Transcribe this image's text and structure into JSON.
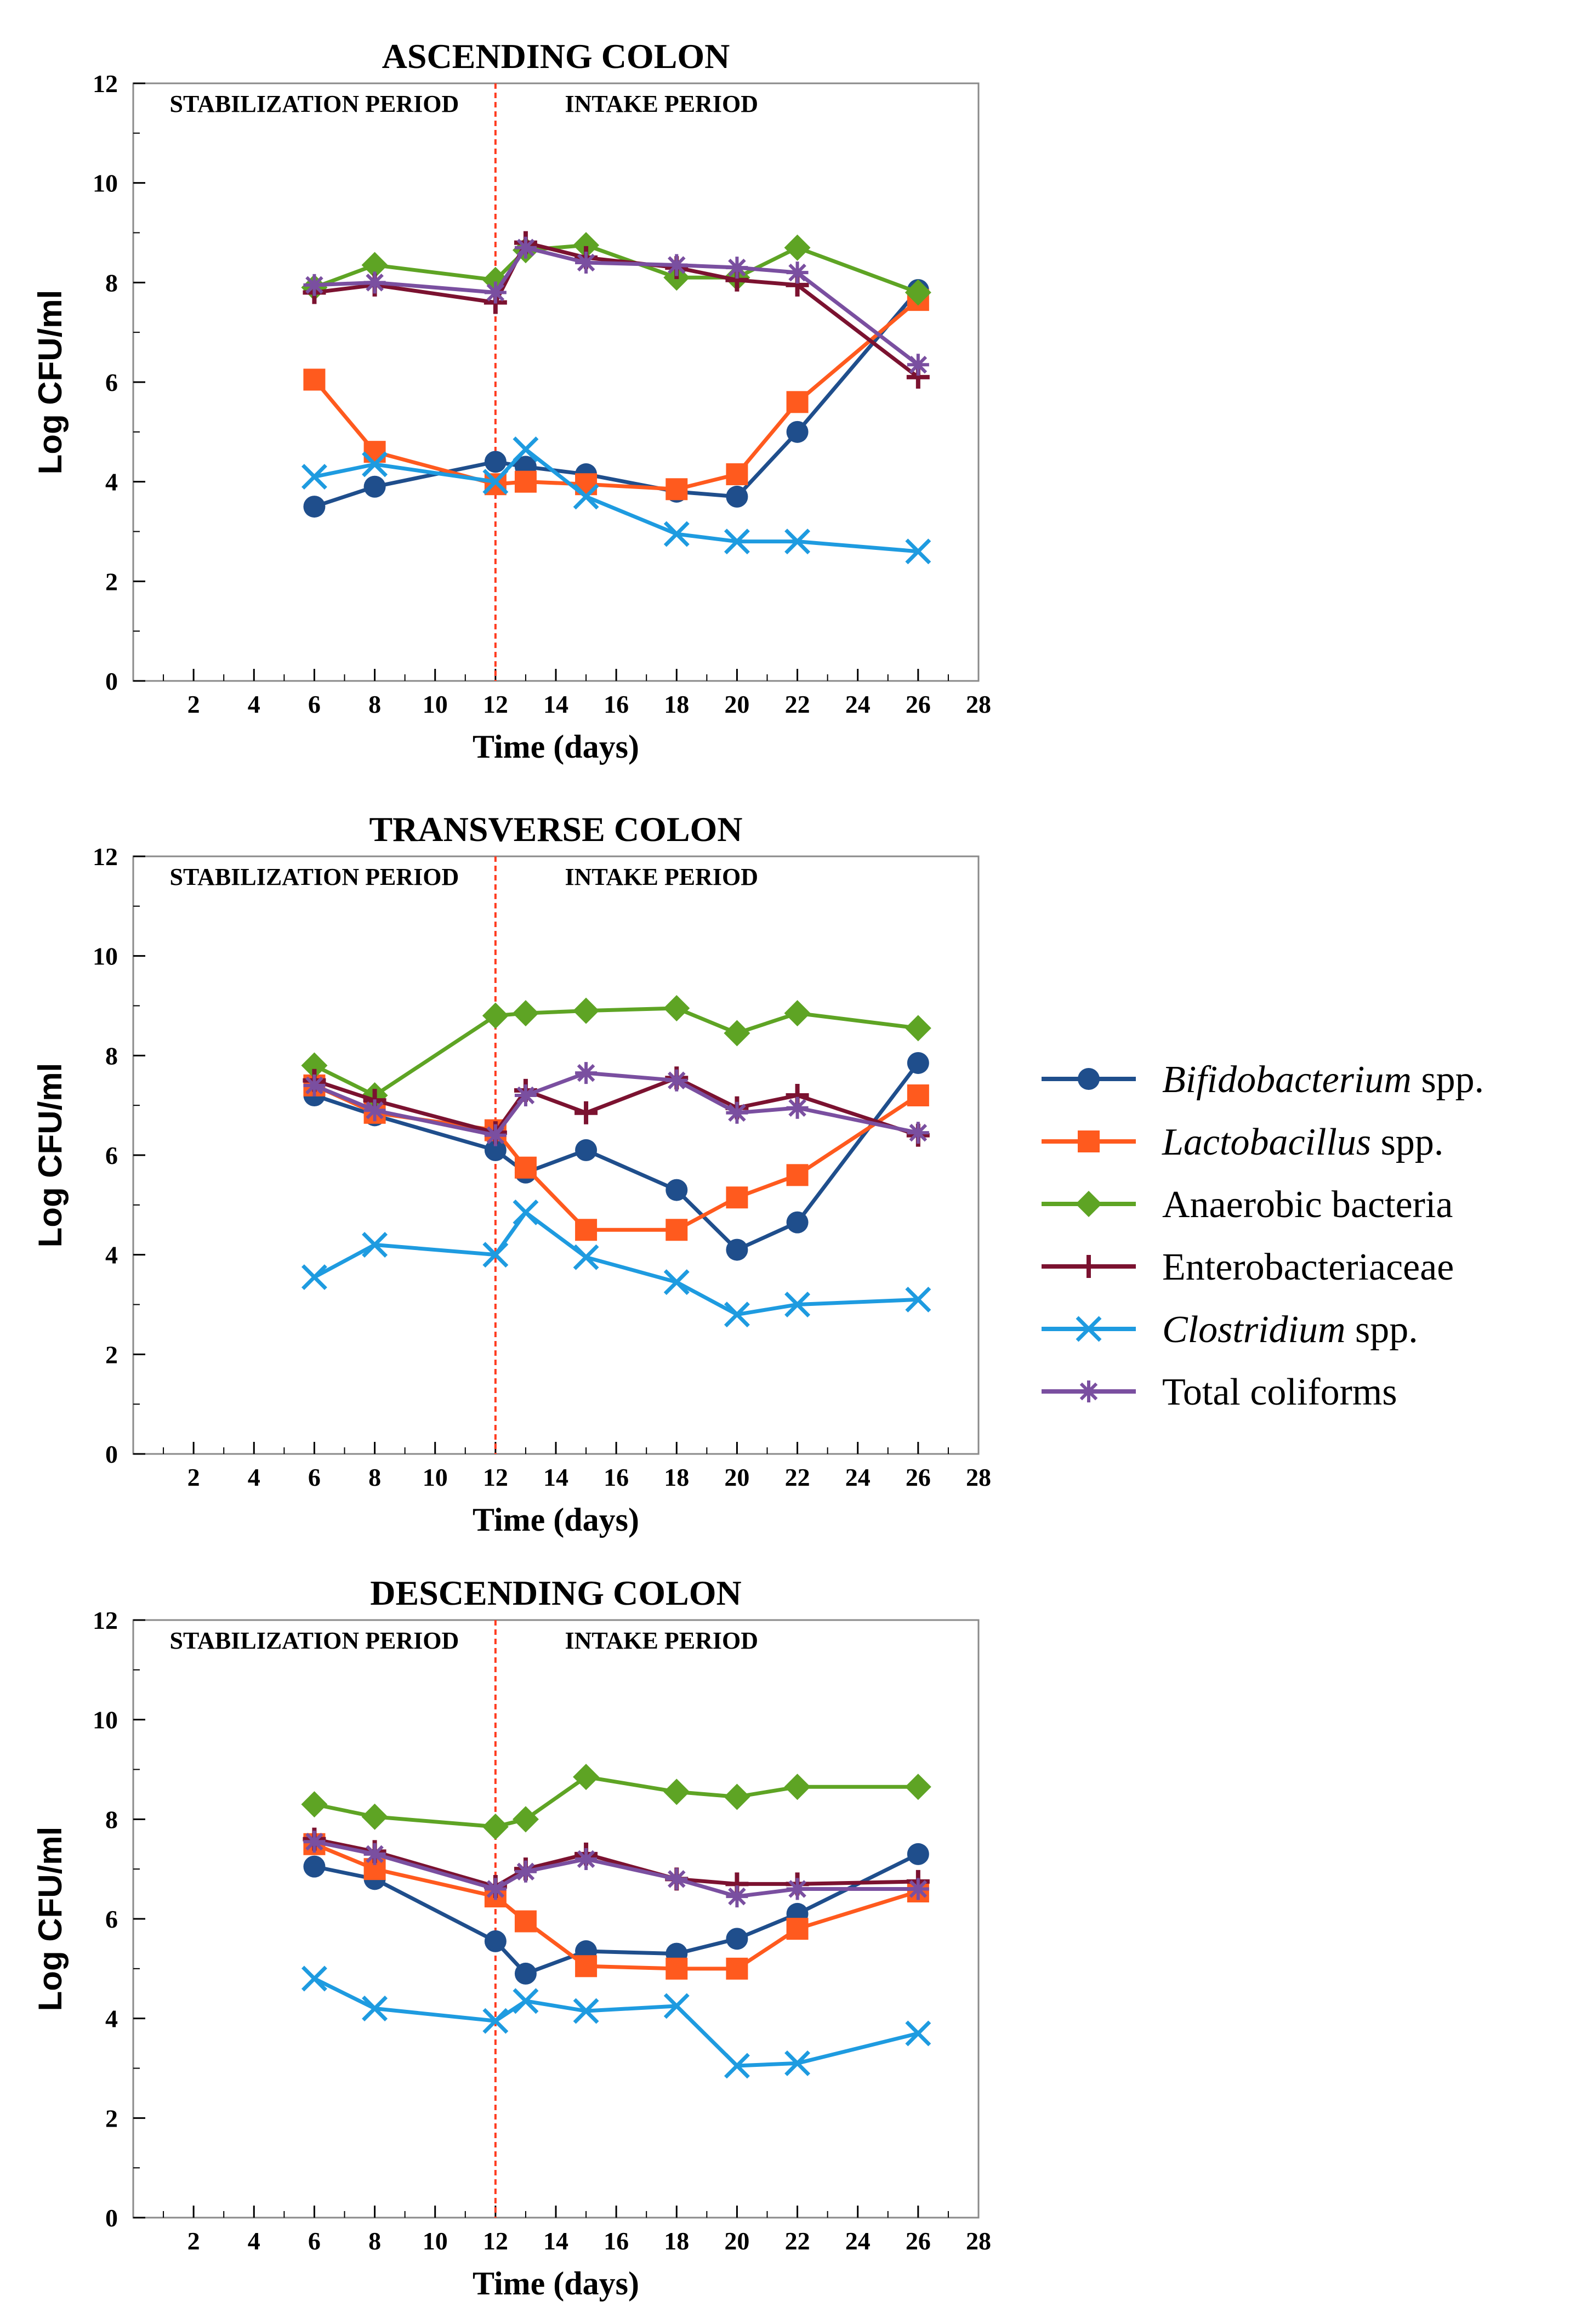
{
  "chart_data": [
    {
      "type": "line",
      "title": "ASCENDING COLON",
      "xlabel": "Time (days)",
      "ylabel": "Log CFU/ml",
      "xlim": [
        0,
        28
      ],
      "ylim": [
        0,
        12
      ],
      "xticks": [
        2,
        4,
        6,
        8,
        10,
        12,
        14,
        16,
        18,
        20,
        22,
        24,
        26,
        28
      ],
      "yticks": [
        0,
        2,
        4,
        6,
        8,
        10,
        12
      ],
      "divider_x": 12,
      "regions": [
        "STABILIZATION PERIOD",
        "INTAKE PERIOD"
      ],
      "x": [
        6,
        8,
        12,
        13,
        15,
        18,
        20,
        22,
        26
      ],
      "series": [
        {
          "name": "Bifidobacterium spp.",
          "values": [
            3.5,
            3.9,
            4.4,
            4.3,
            4.15,
            3.8,
            3.7,
            5.0,
            7.85
          ]
        },
        {
          "name": "Lactobacillus spp.",
          "values": [
            6.05,
            4.6,
            3.95,
            4.0,
            3.95,
            3.85,
            4.15,
            5.6,
            7.65
          ]
        },
        {
          "name": "Anaerobic bacteria",
          "values": [
            7.9,
            8.35,
            8.05,
            8.65,
            8.75,
            8.1,
            8.1,
            8.7,
            7.8
          ]
        },
        {
          "name": "Enterobacteriaceae",
          "values": [
            7.8,
            7.95,
            7.6,
            8.8,
            8.5,
            8.3,
            8.05,
            7.95,
            6.1
          ]
        },
        {
          "name": "Clostridium spp.",
          "values": [
            4.1,
            4.35,
            4.0,
            4.65,
            3.7,
            2.95,
            2.8,
            2.8,
            2.6
          ]
        },
        {
          "name": "Total coliforms",
          "values": [
            7.95,
            8.0,
            7.8,
            8.7,
            8.4,
            8.35,
            8.3,
            8.2,
            6.35
          ]
        }
      ]
    },
    {
      "type": "line",
      "title": "TRANSVERSE COLON",
      "xlabel": "Time (days)",
      "ylabel": "Log CFU/ml",
      "xlim": [
        0,
        28
      ],
      "ylim": [
        0,
        12
      ],
      "xticks": [
        2,
        4,
        6,
        8,
        10,
        12,
        14,
        16,
        18,
        20,
        22,
        24,
        26,
        28
      ],
      "yticks": [
        0,
        2,
        4,
        6,
        8,
        10,
        12
      ],
      "divider_x": 12,
      "regions": [
        "STABILIZATION PERIOD",
        "INTAKE PERIOD"
      ],
      "x": [
        6,
        8,
        12,
        13,
        15,
        18,
        20,
        22,
        26
      ],
      "series": [
        {
          "name": "Bifidobacterium spp.",
          "values": [
            7.2,
            6.8,
            6.1,
            5.65,
            6.1,
            5.3,
            4.1,
            4.65,
            7.85
          ]
        },
        {
          "name": "Lactobacillus spp.",
          "values": [
            7.4,
            6.85,
            6.5,
            5.75,
            4.5,
            4.5,
            5.15,
            5.6,
            7.2
          ]
        },
        {
          "name": "Anaerobic bacteria",
          "values": [
            7.8,
            7.2,
            8.8,
            8.85,
            8.9,
            8.95,
            8.45,
            8.85,
            8.55
          ]
        },
        {
          "name": "Enterobacteriaceae",
          "values": [
            7.5,
            7.1,
            6.45,
            7.3,
            6.85,
            7.55,
            6.95,
            7.2,
            6.4
          ]
        },
        {
          "name": "Clostridium spp.",
          "values": [
            3.55,
            4.2,
            4.0,
            4.85,
            3.95,
            3.45,
            2.8,
            3.0,
            3.1
          ]
        },
        {
          "name": "Total coliforms",
          "values": [
            7.4,
            6.9,
            6.4,
            7.2,
            7.65,
            7.5,
            6.85,
            6.95,
            6.45
          ]
        }
      ]
    },
    {
      "type": "line",
      "title": "DESCENDING COLON",
      "xlabel": "Time (days)",
      "ylabel": "Log CFU/ml",
      "xlim": [
        0,
        28
      ],
      "ylim": [
        0,
        12
      ],
      "xticks": [
        2,
        4,
        6,
        8,
        10,
        12,
        14,
        16,
        18,
        20,
        22,
        24,
        26,
        28
      ],
      "yticks": [
        0,
        2,
        4,
        6,
        8,
        10,
        12
      ],
      "divider_x": 12,
      "regions": [
        "STABILIZATION PERIOD",
        "INTAKE PERIOD"
      ],
      "x": [
        6,
        8,
        12,
        13,
        15,
        18,
        20,
        22,
        26
      ],
      "series": [
        {
          "name": "Bifidobacterium spp.",
          "values": [
            7.05,
            6.8,
            5.55,
            4.9,
            5.35,
            5.3,
            5.6,
            6.1,
            7.3
          ]
        },
        {
          "name": "Lactobacillus spp.",
          "values": [
            7.5,
            7.0,
            6.45,
            5.95,
            5.05,
            5.0,
            5.0,
            5.8,
            6.55
          ]
        },
        {
          "name": "Anaerobic bacteria",
          "values": [
            8.3,
            8.05,
            7.85,
            8.0,
            8.85,
            8.55,
            8.45,
            8.65,
            8.65
          ]
        },
        {
          "name": "Enterobacteriaceae",
          "values": [
            7.6,
            7.35,
            6.65,
            7.0,
            7.3,
            6.8,
            6.7,
            6.7,
            6.75
          ]
        },
        {
          "name": "Clostridium spp.",
          "values": [
            4.8,
            4.2,
            3.95,
            4.35,
            4.15,
            4.25,
            3.05,
            3.1,
            3.7
          ]
        },
        {
          "name": "Total coliforms",
          "values": [
            7.55,
            7.3,
            6.6,
            6.95,
            7.2,
            6.8,
            6.45,
            6.6,
            6.6
          ]
        }
      ]
    }
  ],
  "legend": {
    "position": "right",
    "items": [
      {
        "italic": "Bifidobacterium",
        "rest": " spp."
      },
      {
        "italic": "Lactobacillus",
        "rest": " spp."
      },
      {
        "italic": "",
        "rest": "Anaerobic bacteria"
      },
      {
        "italic": "",
        "rest": "Enterobacteriaceae"
      },
      {
        "italic": "Clostridium",
        "rest": " spp."
      },
      {
        "italic": "",
        "rest": "Total coliforms"
      }
    ]
  },
  "styles": {
    "colors": [
      "#1f4e8c",
      "#ff5a1e",
      "#5ea424",
      "#7b1230",
      "#1e9be0",
      "#7a4fa0"
    ],
    "markers": [
      "circle",
      "square",
      "diamond",
      "plus",
      "x",
      "star"
    ],
    "divider_color": "#ff3b1f"
  }
}
